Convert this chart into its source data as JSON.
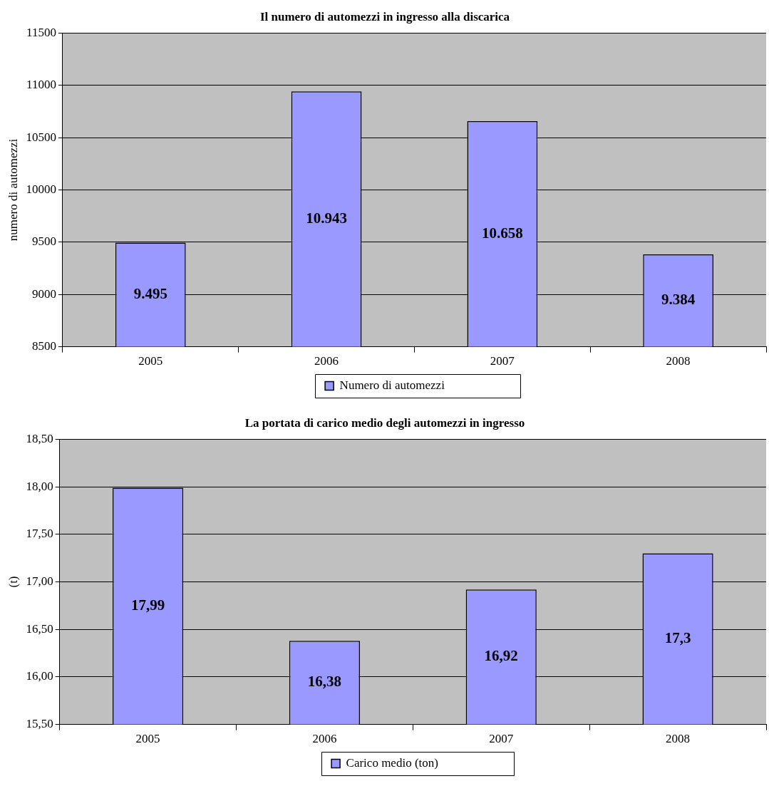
{
  "chart_data": [
    {
      "type": "bar",
      "title": "Il numero di automezzi in ingresso alla discarica",
      "ylabel": "numero di automezzi",
      "categories": [
        "2005",
        "2006",
        "2007",
        "2008"
      ],
      "series": [
        {
          "name": "Numero di automezzi",
          "color": "#9999ff",
          "values": [
            9495,
            10943,
            10658,
            9384
          ],
          "value_labels": [
            "9.495",
            "10.943",
            "10.658",
            "9.384"
          ]
        }
      ],
      "ylim": [
        8500,
        11500
      ],
      "yticks": [
        8500,
        9000,
        9500,
        10000,
        10500,
        11000,
        11500
      ],
      "grid": "y",
      "legend": "bottom"
    },
    {
      "type": "bar",
      "title": "La portata di carico medio degli automezzi in ingresso",
      "ylabel": "(t)",
      "categories": [
        "2005",
        "2006",
        "2007",
        "2008"
      ],
      "series": [
        {
          "name": "Carico medio (ton)",
          "color": "#9999ff",
          "values": [
            17.99,
            16.38,
            16.92,
            17.3
          ],
          "value_labels": [
            "17,99",
            "16,38",
            "16,92",
            "17,3"
          ]
        }
      ],
      "ylim": [
        15.5,
        18.5
      ],
      "yticks": [
        {
          "value": 15.5,
          "label": "15,50"
        },
        {
          "value": 16,
          "label": "16,00"
        },
        {
          "value": 16.5,
          "label": "16,50"
        },
        {
          "value": 17,
          "label": "17,00"
        },
        {
          "value": 17.5,
          "label": "17,50"
        },
        {
          "value": 18,
          "label": "18,00"
        },
        {
          "value": 18.5,
          "label": "18,50"
        }
      ],
      "grid": "y",
      "legend": "bottom"
    }
  ]
}
